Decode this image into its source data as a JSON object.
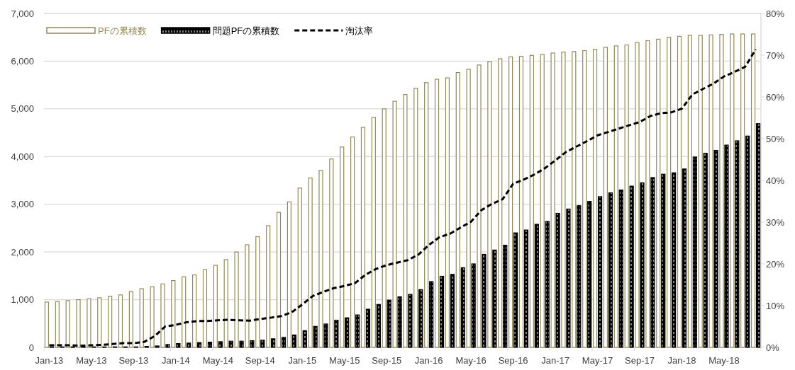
{
  "chart_data": {
    "type": "bar",
    "categories": [
      "Jan-13",
      null,
      null,
      null,
      "May-13",
      null,
      null,
      null,
      "Sep-13",
      null,
      null,
      null,
      "Jan-14",
      null,
      null,
      null,
      "May-14",
      null,
      null,
      null,
      "Sep-14",
      null,
      null,
      null,
      "Jan-15",
      null,
      null,
      null,
      "May-15",
      null,
      null,
      null,
      "Sep-15",
      null,
      null,
      null,
      "Jan-16",
      null,
      null,
      null,
      "May-16",
      null,
      null,
      null,
      "Sep-16",
      null,
      null,
      null,
      "Jan-17",
      null,
      null,
      null,
      "May-17",
      null,
      null,
      null,
      "Sep-17",
      null,
      null,
      null,
      "Jan-18",
      null,
      null,
      null,
      "May-18",
      null,
      null,
      null
    ],
    "series": [
      {
        "name": "PFの累積数",
        "color": "#948a54",
        "values": [
          950,
          960,
          980,
          1000,
          1020,
          1040,
          1070,
          1100,
          1170,
          1230,
          1270,
          1330,
          1400,
          1480,
          1520,
          1630,
          1720,
          1840,
          2000,
          2150,
          2320,
          2550,
          2830,
          3050,
          3340,
          3550,
          3710,
          3950,
          4200,
          4410,
          4610,
          4820,
          5000,
          5160,
          5300,
          5430,
          5550,
          5620,
          5650,
          5760,
          5830,
          5920,
          5990,
          6050,
          6090,
          6100,
          6120,
          6140,
          6170,
          6190,
          6200,
          6220,
          6250,
          6290,
          6320,
          6340,
          6390,
          6430,
          6460,
          6500,
          6520,
          6540,
          6540,
          6550,
          6560,
          6570,
          6570,
          6570
        ]
      },
      {
        "name": "問題PFの累積数",
        "color": "#000000",
        "values": [
          10,
          10,
          10,
          10,
          10,
          10,
          10,
          10,
          10,
          20,
          30,
          60,
          80,
          90,
          100,
          110,
          120,
          130,
          130,
          140,
          150,
          180,
          210,
          260,
          350,
          440,
          490,
          570,
          620,
          680,
          800,
          900,
          990,
          1060,
          1110,
          1210,
          1380,
          1490,
          1530,
          1670,
          1750,
          1950,
          2040,
          2140,
          2400,
          2460,
          2580,
          2640,
          2810,
          2900,
          2970,
          3060,
          3160,
          3240,
          3300,
          3380,
          3450,
          3560,
          3630,
          3660,
          3740,
          3990,
          4070,
          4130,
          4240,
          4330,
          4430,
          4690
        ]
      },
      {
        "name": "淘汰率",
        "type": "line",
        "axis": "y2",
        "color": "#000000",
        "line_style": "dashed",
        "values": [
          0.5,
          0.5,
          0.5,
          0.4,
          0.5,
          0.6,
          0.8,
          1.0,
          1.0,
          1.3,
          2.7,
          5.0,
          5.4,
          6.0,
          6.3,
          6.3,
          6.5,
          6.6,
          6.5,
          6.4,
          6.8,
          7.1,
          7.5,
          8.4,
          10.3,
          12.3,
          13.3,
          14.2,
          14.7,
          15.4,
          17.4,
          18.8,
          19.7,
          20.3,
          20.9,
          22.2,
          24.5,
          26.4,
          27.2,
          28.7,
          30.1,
          32.9,
          34.4,
          35.5,
          39.2,
          40.2,
          41.4,
          42.9,
          44.8,
          46.8,
          48.1,
          49.4,
          50.8,
          51.6,
          52.4,
          53.2,
          54.0,
          55.4,
          56.1,
          56.3,
          57.2,
          60.6,
          61.9,
          63.2,
          64.9,
          66.0,
          67.2,
          71.4
        ]
      }
    ],
    "ylim": [
      0,
      7000
    ],
    "yticks": [
      0,
      {
        "value": 1000,
        "label": "1,000"
      },
      {
        "value": 2000,
        "label": "2,000"
      },
      {
        "value": 3000,
        "label": "3,000"
      },
      {
        "value": 4000,
        "label": "4,000"
      },
      {
        "value": 5000,
        "label": "5,000"
      },
      {
        "value": 6000,
        "label": "6,000"
      },
      {
        "value": 7000,
        "label": "7,000"
      }
    ],
    "y2lim": [
      0,
      80
    ],
    "y2ticks": [
      {
        "value": 0,
        "label": "0%"
      },
      {
        "value": 10,
        "label": "10%"
      },
      {
        "value": 20,
        "label": "20%"
      },
      {
        "value": 30,
        "label": "30%"
      },
      {
        "value": 40,
        "label": "40%"
      },
      {
        "value": 50,
        "label": "50%"
      },
      {
        "value": 60,
        "label": "60%"
      },
      {
        "value": 70,
        "label": "70%"
      },
      {
        "value": 80,
        "label": "80%"
      }
    ],
    "grid": "y",
    "legend": "top left"
  }
}
